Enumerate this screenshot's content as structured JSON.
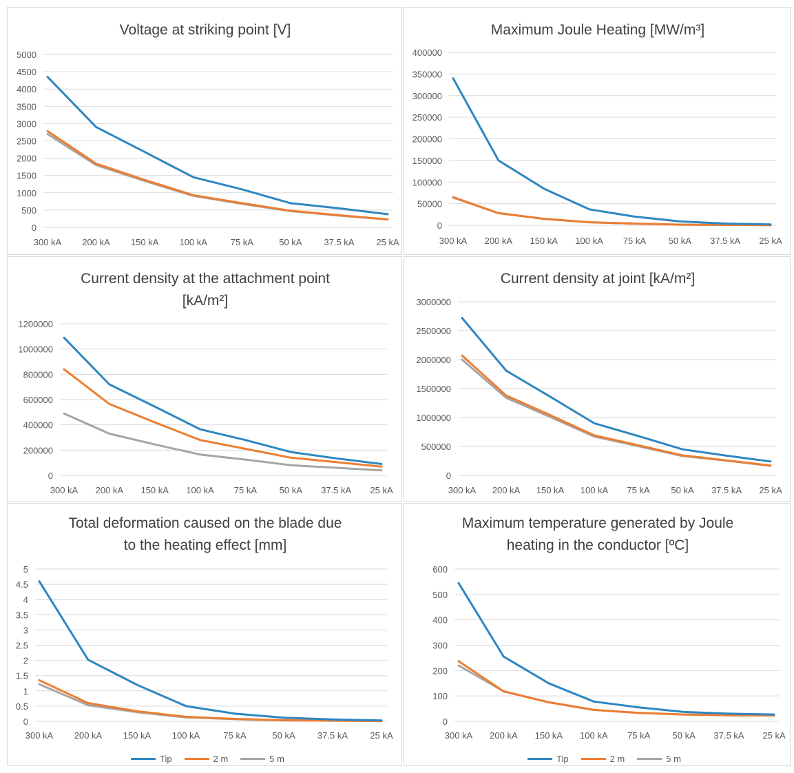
{
  "colors": {
    "Tip": "#2E86C1",
    "2 m": "#ED7D31",
    "5 m": "#A5A5A5"
  },
  "legend": [
    "Tip",
    "2 m",
    "5 m"
  ],
  "chart_data": [
    {
      "type": "line",
      "title_lines": [
        "Voltage at striking point [V]"
      ],
      "categories": [
        "300 kA",
        "200 kA",
        "150 kA",
        "100 kA",
        "75 kA",
        "50 kA",
        "37.5 kA",
        "25 kA"
      ],
      "yticks": [
        "0",
        "500",
        "1000",
        "1500",
        "2000",
        "2500",
        "3000",
        "3500",
        "4000",
        "4500",
        "5000"
      ],
      "ylim": [
        0,
        5000
      ],
      "grid": true,
      "series": [
        {
          "name": "Tip",
          "values": [
            4350,
            2900,
            2180,
            1450,
            1100,
            700,
            550,
            380
          ]
        },
        {
          "name": "2 m",
          "values": [
            2780,
            1840,
            1370,
            930,
            700,
            480,
            350,
            230
          ]
        },
        {
          "name": "5 m",
          "values": [
            2700,
            1800,
            1340,
            910,
            680,
            470,
            340,
            230
          ]
        }
      ]
    },
    {
      "type": "line",
      "title_lines": [
        "Maximum Joule Heating [MW/m³]"
      ],
      "categories": [
        "300 kA",
        "200 kA",
        "150 kA",
        "100 kA",
        "75 kA",
        "50 kA",
        "37.5 kA",
        "25 kA"
      ],
      "yticks": [
        "0",
        "50000",
        "100000",
        "150000",
        "200000",
        "250000",
        "300000",
        "350000",
        "400000"
      ],
      "ylim": [
        0,
        400000
      ],
      "grid": true,
      "series": [
        {
          "name": "Tip",
          "values": [
            340000,
            150000,
            85000,
            37000,
            20000,
            9000,
            4000,
            2000
          ]
        },
        {
          "name": "2 m",
          "values": [
            65000,
            28000,
            15000,
            7000,
            4000,
            1500,
            1000,
            500
          ]
        },
        {
          "name": "5 m",
          "values": [
            64000,
            28000,
            15000,
            7000,
            4000,
            1500,
            1000,
            500
          ]
        }
      ]
    },
    {
      "type": "line",
      "title_lines": [
        "Current density at the attachment point",
        "[kA/m²]"
      ],
      "categories": [
        "300 kA",
        "200 kA",
        "150 kA",
        "100 kA",
        "75 kA",
        "50 kA",
        "37.5 kA",
        "25 kA"
      ],
      "yticks": [
        "0",
        "200000",
        "400000",
        "600000",
        "800000",
        "1000000",
        "1200000"
      ],
      "ylim": [
        0,
        1200000
      ],
      "grid": true,
      "series": [
        {
          "name": "Tip",
          "values": [
            1090000,
            720000,
            545000,
            365000,
            280000,
            185000,
            135000,
            90000
          ]
        },
        {
          "name": "2 m",
          "values": [
            840000,
            565000,
            420000,
            280000,
            210000,
            140000,
            105000,
            70000
          ]
        },
        {
          "name": "5 m",
          "values": [
            490000,
            330000,
            245000,
            165000,
            125000,
            80000,
            60000,
            40000
          ]
        }
      ]
    },
    {
      "type": "line",
      "title_lines": [
        "Current density at joint [kA/m²]"
      ],
      "categories": [
        "300 kA",
        "200 kA",
        "150 kA",
        "100 kA",
        "75 kA",
        "50 kA",
        "37.5 kA",
        "25 kA"
      ],
      "yticks": [
        "0",
        "500000",
        "1000000",
        "1500000",
        "2000000",
        "2500000",
        "3000000"
      ],
      "ylim": [
        0,
        3000000
      ],
      "grid": true,
      "series": [
        {
          "name": "Tip",
          "values": [
            2720000,
            1810000,
            1360000,
            900000,
            680000,
            450000,
            340000,
            240000
          ]
        },
        {
          "name": "2 m",
          "values": [
            2070000,
            1380000,
            1040000,
            690000,
            520000,
            345000,
            260000,
            170000
          ]
        },
        {
          "name": "5 m",
          "values": [
            2000000,
            1340000,
            1010000,
            670000,
            505000,
            335000,
            255000,
            165000
          ]
        }
      ]
    },
    {
      "type": "line",
      "title_lines": [
        "Total deformation caused on the blade due",
        "to the heating effect [mm]"
      ],
      "categories": [
        "300 kA",
        "200 kA",
        "150 kA",
        "100 kA",
        "75 kA",
        "50 kA",
        "37.5 kA",
        "25 kA"
      ],
      "yticks": [
        "0",
        "0.5",
        "1",
        "1.5",
        "2",
        "2.5",
        "3",
        "3.5",
        "4",
        "4.5",
        "5"
      ],
      "ylim": [
        0,
        5
      ],
      "grid": true,
      "series": [
        {
          "name": "Tip",
          "values": [
            4.6,
            2.02,
            1.2,
            0.5,
            0.25,
            0.12,
            0.06,
            0.03
          ]
        },
        {
          "name": "2 m",
          "values": [
            1.35,
            0.6,
            0.33,
            0.15,
            0.08,
            0.04,
            0.02,
            0.01
          ]
        },
        {
          "name": "5 m",
          "values": [
            1.22,
            0.53,
            0.3,
            0.13,
            0.07,
            0.03,
            0.02,
            0.01
          ]
        }
      ]
    },
    {
      "type": "line",
      "title_lines": [
        "Maximum temperature generated by Joule",
        "heating in the conductor [ºC]"
      ],
      "categories": [
        "300 kA",
        "200 kA",
        "150 kA",
        "100 kA",
        "75 kA",
        "50 kA",
        "37.5 kA",
        "25 kA"
      ],
      "yticks": [
        "0",
        "100",
        "200",
        "300",
        "400",
        "500",
        "600"
      ],
      "ylim": [
        0,
        600
      ],
      "grid": true,
      "series": [
        {
          "name": "Tip",
          "values": [
            545,
            255,
            150,
            78,
            55,
            37,
            30,
            27
          ]
        },
        {
          "name": "2 m",
          "values": [
            237,
            118,
            75,
            45,
            33,
            27,
            24,
            23
          ]
        },
        {
          "name": "5 m",
          "values": [
            220,
            118,
            75,
            45,
            33,
            27,
            24,
            23
          ]
        }
      ]
    }
  ]
}
